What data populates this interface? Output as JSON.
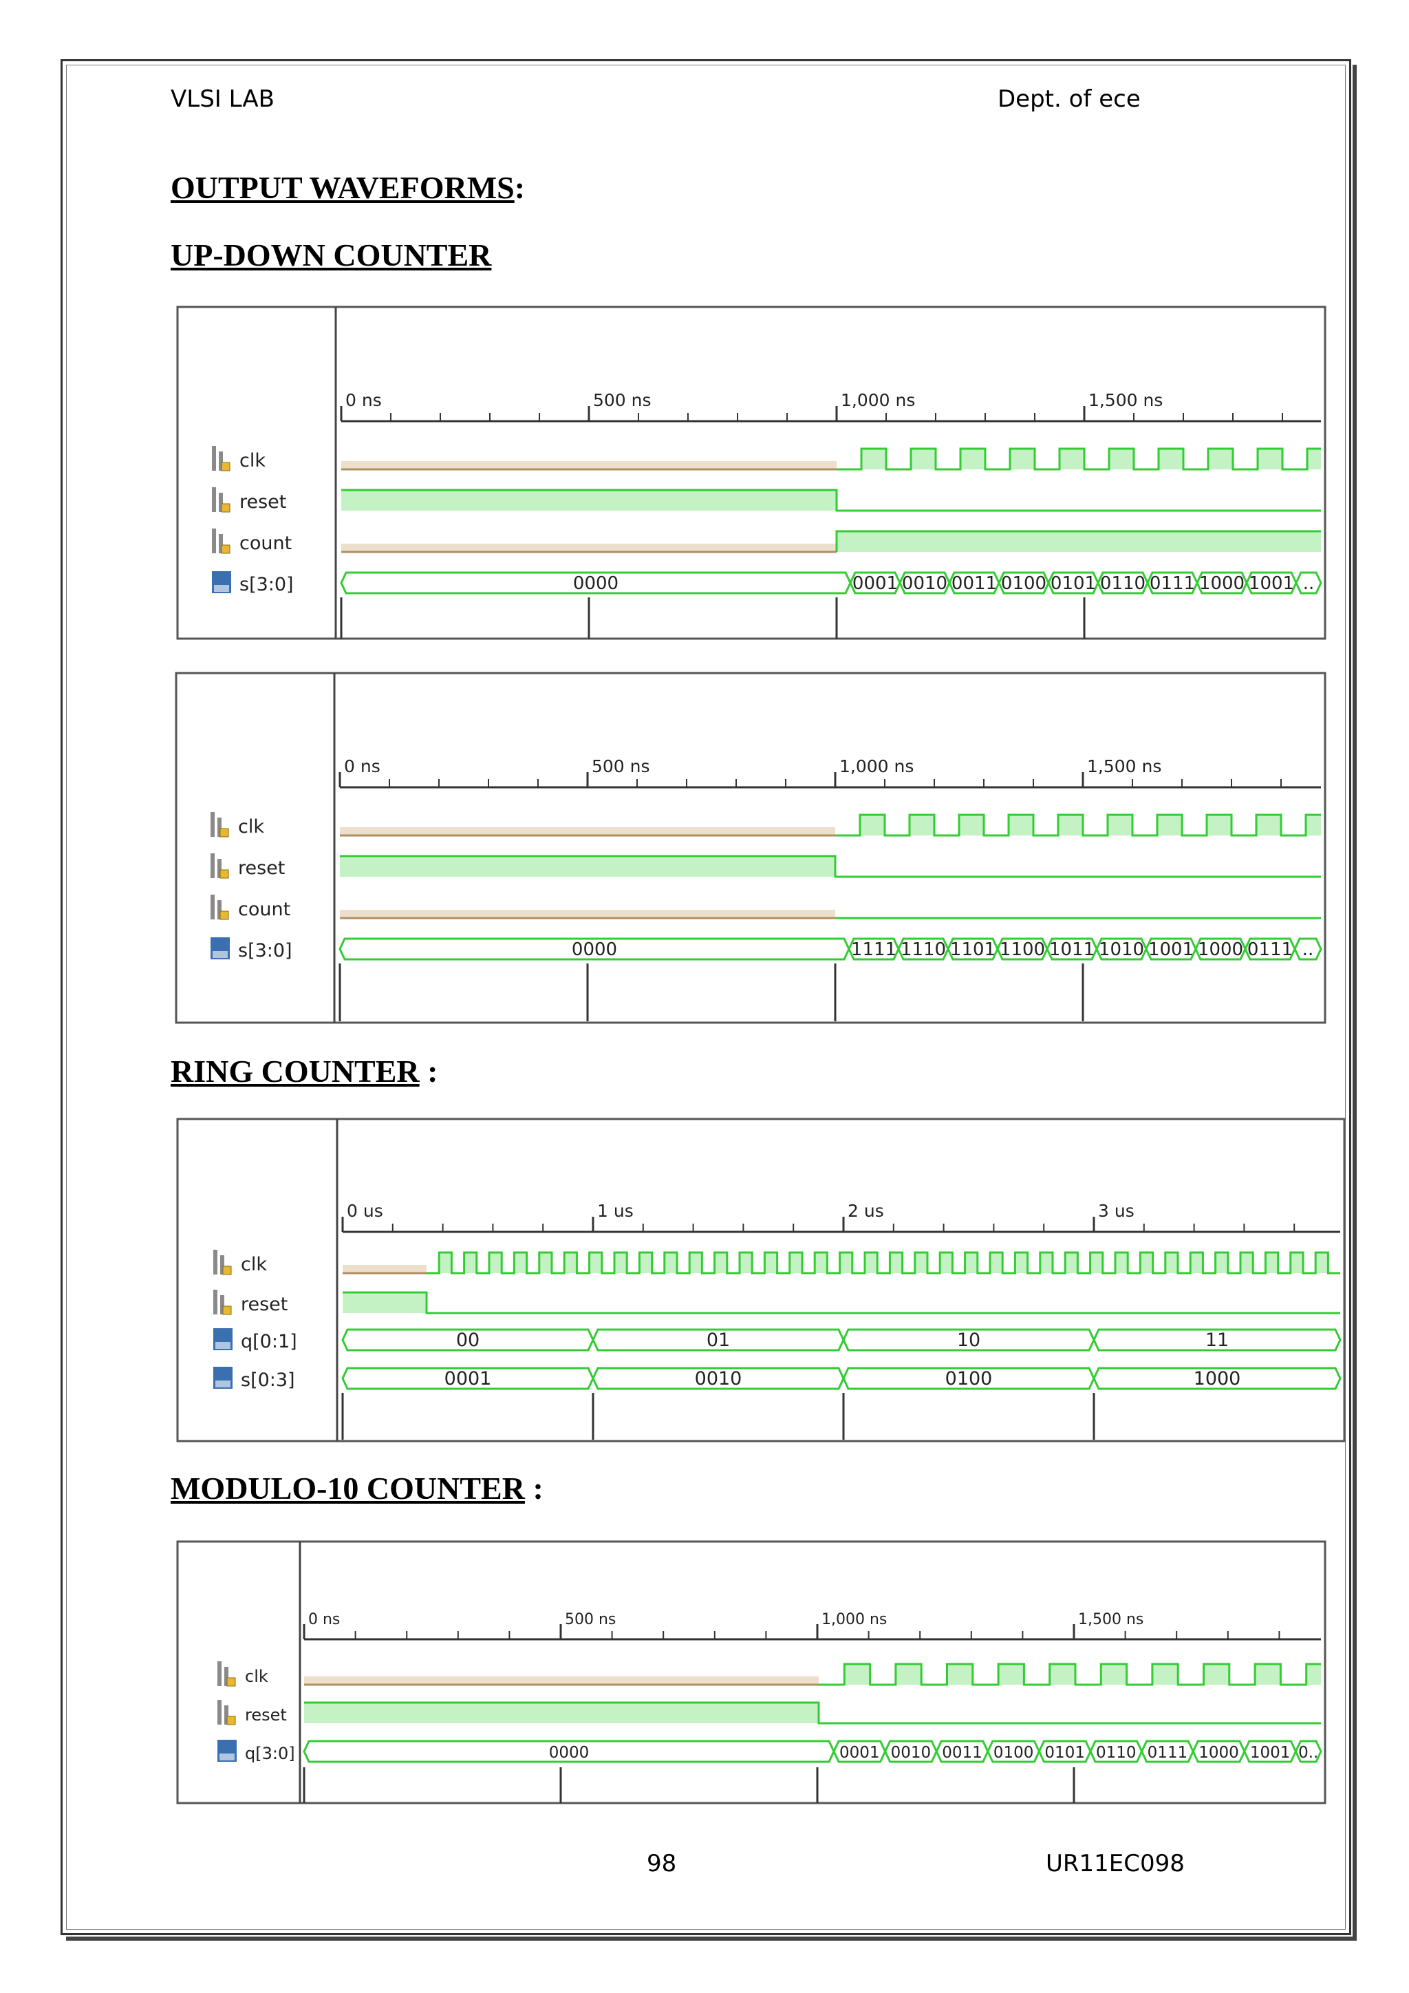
{
  "header": {
    "left": "VLSI LAB",
    "right": "Dept. of ece"
  },
  "headings": {
    "output": "OUTPUT WAVEFORMS",
    "output_suffix": ":",
    "updown": "UP-DOWN COUNTER",
    "ring": "RING COUNTER",
    "ring_suffix": " :",
    "mod10": "MODULO-10 COUNTER",
    "mod10_suffix": " :"
  },
  "footer": {
    "page": "98",
    "roll": "UR11EC098"
  },
  "waveforms": [
    {
      "id": "updown-up",
      "time_labels": [
        "0 ns",
        "500 ns",
        "1,000 ns",
        "1,500 ns"
      ],
      "signals": [
        "clk",
        "reset",
        "count",
        "s[3:0]"
      ],
      "signal_types": [
        "bit",
        "bit",
        "bit",
        "bus"
      ],
      "initial_bus": "0000",
      "bus_values": [
        "0001",
        "0010",
        "0011",
        "0100",
        "0101",
        "0110",
        "0111",
        "1000",
        "1001",
        ".."
      ]
    },
    {
      "id": "updown-down",
      "time_labels": [
        "0 ns",
        "500 ns",
        "1,000 ns",
        "1,500 ns"
      ],
      "signals": [
        "clk",
        "reset",
        "count",
        "s[3:0]"
      ],
      "signal_types": [
        "bit",
        "bit",
        "bit",
        "bus"
      ],
      "initial_bus": "0000",
      "bus_values": [
        "1111",
        "1110",
        "1101",
        "1100",
        "1011",
        "1010",
        "1001",
        "1000",
        "0111",
        ".."
      ]
    },
    {
      "id": "ring",
      "time_labels": [
        "0 us",
        "1 us",
        "2 us",
        "3 us"
      ],
      "signals": [
        "clk",
        "reset",
        "q[0:1]",
        "s[0:3]"
      ],
      "signal_types": [
        "bit",
        "bit",
        "bus",
        "bus"
      ],
      "q_values": [
        "00",
        "01",
        "10",
        "11"
      ],
      "s_values": [
        "0001",
        "0010",
        "0100",
        "1000"
      ]
    },
    {
      "id": "mod10",
      "time_labels": [
        "0 ns",
        "500 ns",
        "1,000 ns",
        "1,500 ns"
      ],
      "signals": [
        "clk",
        "reset",
        "q[3:0]"
      ],
      "signal_types": [
        "bit",
        "bit",
        "bus"
      ],
      "initial_bus": "0000",
      "bus_values": [
        "0001",
        "0010",
        "0011",
        "0100",
        "0101",
        "0110",
        "0111",
        "1000",
        "1001",
        "0.."
      ]
    }
  ],
  "colors": {
    "green": "#33cc33",
    "green_fill": "#c4f2c4",
    "tan": "#b08e62",
    "tan_fill": "#ecdfcc",
    "icon": "#3a6fb0"
  }
}
